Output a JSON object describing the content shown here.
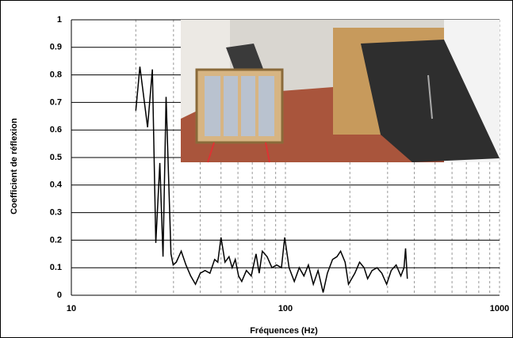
{
  "chart_data": {
    "type": "line",
    "x_label": "Fréquences (Hz)",
    "y_label": "Coefficient de réflexion",
    "xscale": "log",
    "xlim": [
      10,
      1000
    ],
    "xticks": [
      10,
      100,
      1000
    ],
    "minor_grid": true,
    "ylim": [
      0,
      1
    ],
    "yticks": [
      0,
      0.1,
      0.2,
      0.3,
      0.4,
      0.5,
      0.6,
      0.7,
      0.8,
      0.9,
      1
    ],
    "grid": true,
    "color": "#000000",
    "x": [
      20.0,
      20.9,
      22.7,
      23.9,
      24.8,
      25.9,
      26.8,
      27.7,
      29.2,
      29.9,
      30.9,
      32.6,
      34.3,
      36.1,
      38.0,
      40.0,
      42.1,
      44.4,
      46.7,
      48.3,
      50.0,
      52.2,
      54.5,
      56.4,
      58.3,
      60.4,
      62.5,
      65.7,
      69.2,
      72.9,
      75.4,
      78.0,
      82.1,
      86.5,
      91.0,
      95.8,
      99.2,
      104,
      110,
      116,
      122,
      128,
      135,
      142,
      150,
      157,
      166,
      174,
      181,
      190,
      197,
      211,
      222,
      233,
      242,
      254,
      268,
      282,
      297,
      312,
      329,
      346,
      358,
      364,
      371
    ],
    "values": [
      0.67,
      0.83,
      0.61,
      0.82,
      0.19,
      0.48,
      0.14,
      0.72,
      0.15,
      0.11,
      0.12,
      0.16,
      0.11,
      0.07,
      0.04,
      0.08,
      0.09,
      0.08,
      0.13,
      0.12,
      0.21,
      0.12,
      0.14,
      0.1,
      0.13,
      0.07,
      0.05,
      0.09,
      0.07,
      0.15,
      0.08,
      0.16,
      0.14,
      0.1,
      0.11,
      0.1,
      0.21,
      0.1,
      0.05,
      0.1,
      0.07,
      0.11,
      0.04,
      0.09,
      0.01,
      0.08,
      0.13,
      0.14,
      0.16,
      0.12,
      0.04,
      0.08,
      0.12,
      0.1,
      0.06,
      0.09,
      0.1,
      0.08,
      0.04,
      0.09,
      0.11,
      0.07,
      0.1,
      0.17,
      0.06
    ]
  }
}
